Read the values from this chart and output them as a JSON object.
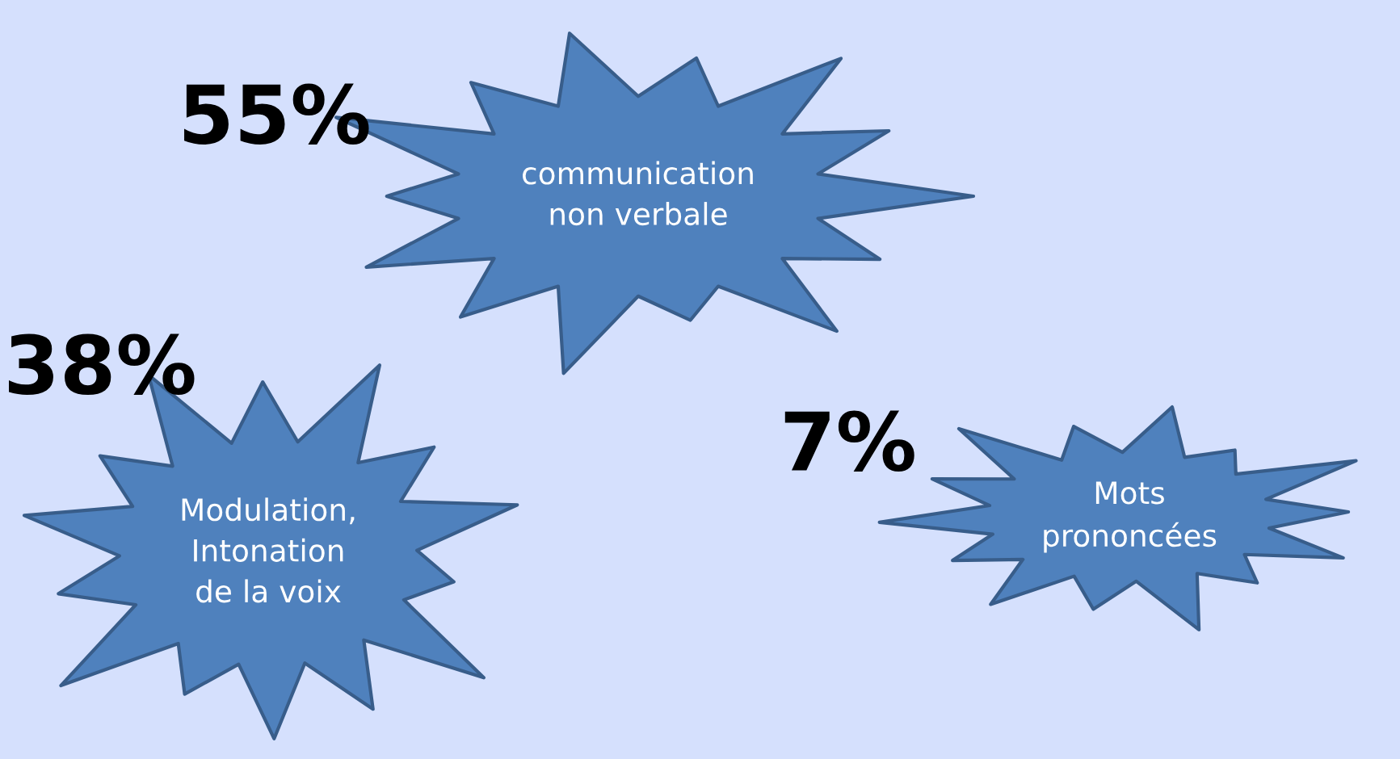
{
  "chart_data": {
    "type": "other",
    "categories": [
      "communication\nnon verbale",
      "Modulation,\nIntonation\nde la voix",
      "Mots\nprononcées"
    ],
    "values": [
      55,
      38,
      7
    ],
    "value_labels": [
      "55%",
      "38%",
      "7%"
    ],
    "colors": [
      "#4f81bd",
      "#4f81bd",
      "#4f81bd"
    ]
  }
}
